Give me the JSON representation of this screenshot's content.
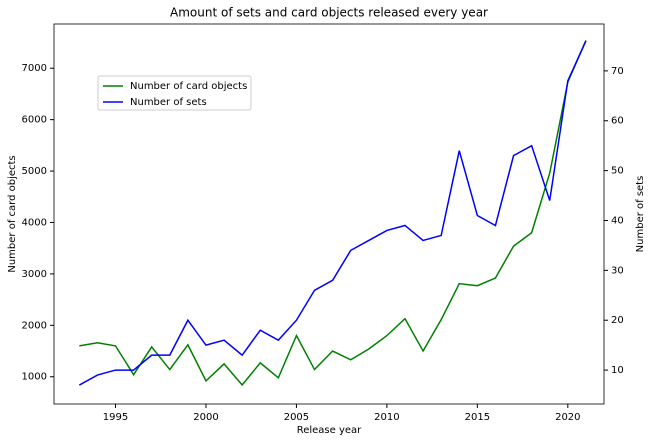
{
  "chart_data": {
    "type": "line",
    "title": "Amount of sets and card objects released every year",
    "x_label": "Release year",
    "y_label": "Number of card objects",
    "y2_label": "Number of sets",
    "x": [
      1993,
      1994,
      1995,
      1996,
      1997,
      1998,
      1999,
      2000,
      2001,
      2002,
      2003,
      2004,
      2005,
      2006,
      2007,
      2008,
      2009,
      2010,
      2011,
      2012,
      2013,
      2014,
      2015,
      2016,
      2017,
      2018,
      2019,
      2020,
      2021
    ],
    "series": [
      {
        "name": "Number of card objects",
        "color": "#008000",
        "axis": "y",
        "values": [
          1600,
          1660,
          1600,
          1040,
          1580,
          1140,
          1620,
          920,
          1250,
          840,
          1270,
          980,
          1800,
          1140,
          1500,
          1330,
          1540,
          1800,
          2130,
          1500,
          2110,
          2810,
          2770,
          2920,
          3540,
          3800,
          4960,
          6730,
          7540
        ]
      },
      {
        "name": "Number of sets",
        "color": "#0000ff",
        "axis": "y2",
        "values": [
          7,
          9,
          10,
          10,
          13,
          13,
          20,
          15,
          16,
          13,
          18,
          16,
          20,
          26,
          28,
          34,
          36,
          38,
          39,
          36,
          37,
          54,
          41,
          39,
          53,
          55,
          44,
          68,
          76
        ]
      }
    ],
    "xlim": [
      1991.6,
      2022.0
    ],
    "xticks": [
      1995,
      2000,
      2005,
      2010,
      2015,
      2020
    ],
    "ylim": [
      470,
      7860
    ],
    "yticks": [
      1000,
      2000,
      3000,
      4000,
      5000,
      6000,
      7000
    ],
    "y2lim": [
      3.2,
      79.4
    ],
    "y2ticks": [
      10,
      20,
      30,
      40,
      50,
      60,
      70
    ],
    "legend": "upper left",
    "grid": false
  }
}
